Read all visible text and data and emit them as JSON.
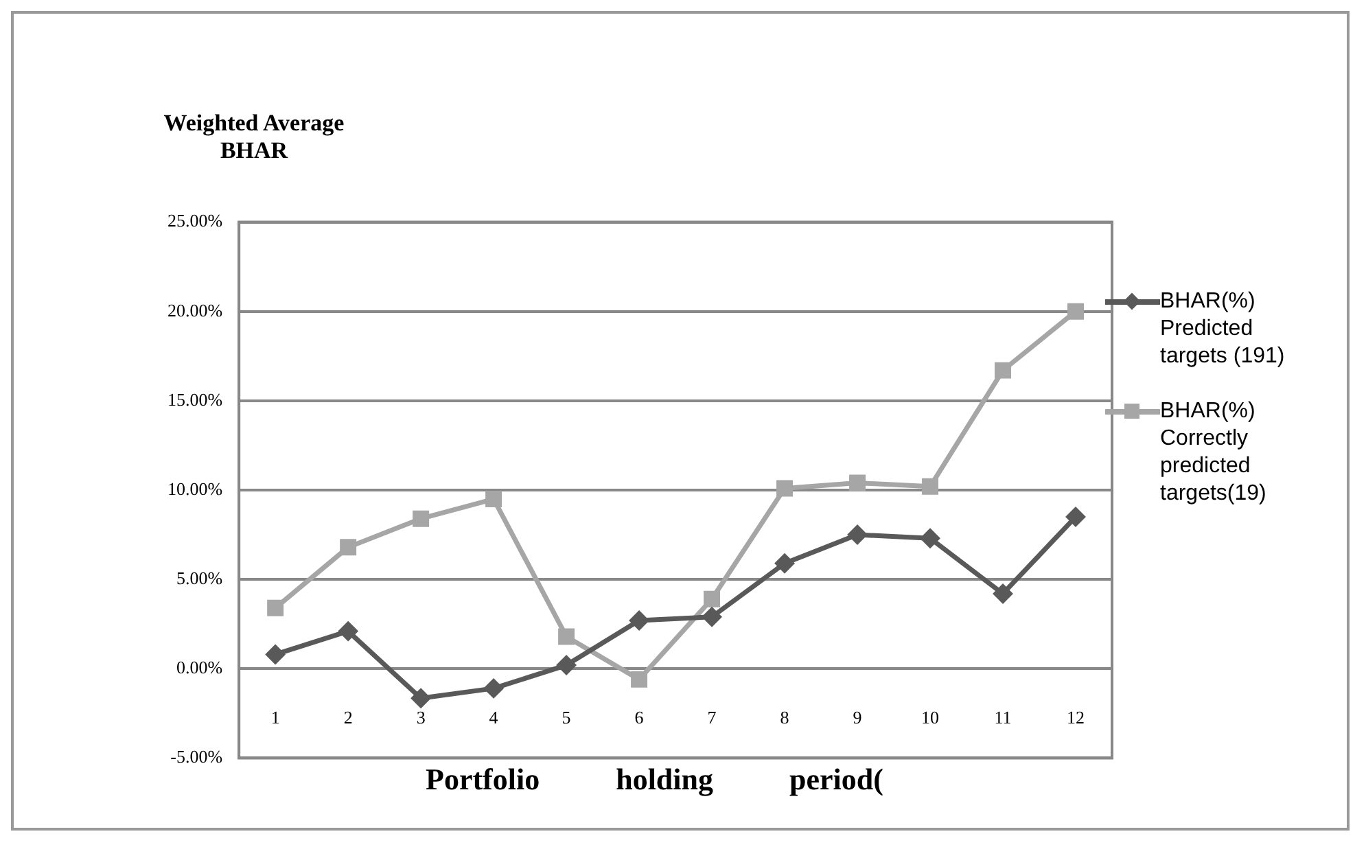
{
  "chart_data": {
    "type": "line",
    "ylabel": "Weighted Average BHAR",
    "xlabel": "Portfolio holding period(",
    "categories": [
      "1",
      "2",
      "3",
      "4",
      "5",
      "6",
      "7",
      "8",
      "9",
      "10",
      "11",
      "12"
    ],
    "series": [
      {
        "name": "BHAR(%) Predicted targets (191)",
        "color": "#595959",
        "marker": "diamond",
        "values": [
          0.8,
          2.1,
          -1.65,
          -1.1,
          0.2,
          2.7,
          2.9,
          5.9,
          7.5,
          7.3,
          4.2,
          8.5
        ]
      },
      {
        "name": "BHAR(%) Correctly predicted targets(19)",
        "color": "#a6a6a6",
        "marker": "square",
        "values": [
          3.4,
          6.8,
          8.4,
          9.5,
          1.8,
          -0.6,
          3.9,
          10.1,
          10.4,
          10.2,
          16.7,
          20.0
        ]
      }
    ],
    "ylim": [
      -5,
      25
    ],
    "yticks": [
      {
        "value": -5,
        "label": "-5.00%"
      },
      {
        "value": 0,
        "label": "0.00%"
      },
      {
        "value": 5,
        "label": "5.00%"
      },
      {
        "value": 10,
        "label": "10.00%"
      },
      {
        "value": 15,
        "label": "15.00%"
      },
      {
        "value": 20,
        "label": "20.00%"
      },
      {
        "value": 25,
        "label": "25.00%"
      }
    ],
    "grid": "y",
    "legend": "right",
    "line_style": "solid"
  }
}
